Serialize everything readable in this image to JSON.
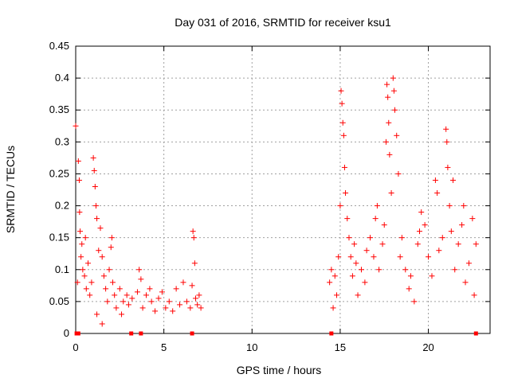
{
  "chart_data": {
    "type": "scatter",
    "title": "Day 031 of 2016, SRMTID for receiver ksu1",
    "xlabel": "GPS time / hours",
    "ylabel": "SRMTID / TECUs",
    "xlim": [
      0,
      23.5
    ],
    "ylim": [
      0,
      0.45
    ],
    "xticks": [
      0,
      5,
      10,
      15,
      20
    ],
    "xtick_labels": [
      "0",
      "5",
      "10",
      "15",
      "20"
    ],
    "yticks": [
      0,
      0.05,
      0.1,
      0.15,
      0.2,
      0.25,
      0.3,
      0.35,
      0.4,
      0.45
    ],
    "ytick_labels": [
      "0",
      "0.05",
      "0.1",
      "0.15",
      "0.2",
      "0.25",
      "0.3",
      "0.35",
      "0.4",
      "0.45"
    ],
    "grid": true,
    "marker": "plus",
    "series": [
      {
        "name": "SRMTID",
        "color": "#ff0000",
        "points": [
          [
            0.0,
            0.325
          ],
          [
            0.1,
            0.08
          ],
          [
            0.15,
            0.27
          ],
          [
            0.2,
            0.24
          ],
          [
            0.22,
            0.19
          ],
          [
            0.25,
            0.16
          ],
          [
            0.3,
            0.12
          ],
          [
            0.35,
            0.14
          ],
          [
            0.4,
            0.1
          ],
          [
            0.5,
            0.09
          ],
          [
            0.55,
            0.15
          ],
          [
            0.6,
            0.07
          ],
          [
            0.7,
            0.11
          ],
          [
            0.8,
            0.06
          ],
          [
            0.9,
            0.08
          ],
          [
            1.0,
            0.275
          ],
          [
            1.05,
            0.255
          ],
          [
            1.1,
            0.23
          ],
          [
            1.15,
            0.2
          ],
          [
            1.2,
            0.18
          ],
          [
            1.3,
            0.13
          ],
          [
            1.4,
            0.165
          ],
          [
            1.5,
            0.12
          ],
          [
            1.6,
            0.09
          ],
          [
            1.7,
            0.07
          ],
          [
            1.8,
            0.05
          ],
          [
            1.9,
            0.1
          ],
          [
            2.0,
            0.135
          ],
          [
            2.05,
            0.15
          ],
          [
            2.1,
            0.08
          ],
          [
            2.2,
            0.06
          ],
          [
            2.3,
            0.04
          ],
          [
            2.5,
            0.07
          ],
          [
            2.7,
            0.05
          ],
          [
            2.9,
            0.06
          ],
          [
            3.0,
            0.045
          ],
          [
            3.2,
            0.055
          ],
          [
            3.5,
            0.065
          ],
          [
            3.6,
            0.1
          ],
          [
            3.7,
            0.085
          ],
          [
            3.8,
            0.04
          ],
          [
            4.0,
            0.06
          ],
          [
            4.2,
            0.07
          ],
          [
            4.3,
            0.05
          ],
          [
            4.5,
            0.035
          ],
          [
            4.7,
            0.055
          ],
          [
            4.9,
            0.065
          ],
          [
            5.1,
            0.04
          ],
          [
            5.3,
            0.05
          ],
          [
            5.5,
            0.035
          ],
          [
            5.7,
            0.07
          ],
          [
            5.9,
            0.045
          ],
          [
            6.1,
            0.08
          ],
          [
            6.3,
            0.05
          ],
          [
            6.5,
            0.04
          ],
          [
            6.6,
            0.075
          ],
          [
            6.65,
            0.16
          ],
          [
            6.7,
            0.15
          ],
          [
            6.75,
            0.11
          ],
          [
            6.8,
            0.055
          ],
          [
            6.9,
            0.045
          ],
          [
            7.0,
            0.06
          ],
          [
            7.1,
            0.04
          ],
          [
            1.2,
            0.03
          ],
          [
            1.5,
            0.015
          ],
          [
            2.6,
            0.03
          ],
          [
            14.4,
            0.08
          ],
          [
            14.5,
            0.1
          ],
          [
            14.6,
            0.04
          ],
          [
            14.7,
            0.09
          ],
          [
            14.8,
            0.06
          ],
          [
            14.9,
            0.12
          ],
          [
            15.0,
            0.2
          ],
          [
            15.05,
            0.38
          ],
          [
            15.1,
            0.36
          ],
          [
            15.15,
            0.33
          ],
          [
            15.2,
            0.31
          ],
          [
            15.25,
            0.26
          ],
          [
            15.3,
            0.22
          ],
          [
            15.4,
            0.18
          ],
          [
            15.5,
            0.15
          ],
          [
            15.6,
            0.12
          ],
          [
            15.7,
            0.09
          ],
          [
            15.8,
            0.14
          ],
          [
            15.9,
            0.11
          ],
          [
            16.0,
            0.06
          ],
          [
            16.2,
            0.1
          ],
          [
            16.4,
            0.08
          ],
          [
            16.5,
            0.13
          ],
          [
            16.7,
            0.15
          ],
          [
            16.9,
            0.12
          ],
          [
            17.0,
            0.18
          ],
          [
            17.1,
            0.2
          ],
          [
            17.2,
            0.1
          ],
          [
            17.4,
            0.14
          ],
          [
            17.5,
            0.17
          ],
          [
            17.6,
            0.3
          ],
          [
            17.65,
            0.39
          ],
          [
            17.7,
            0.37
          ],
          [
            17.75,
            0.33
          ],
          [
            17.8,
            0.28
          ],
          [
            17.9,
            0.22
          ],
          [
            18.0,
            0.4
          ],
          [
            18.05,
            0.38
          ],
          [
            18.1,
            0.35
          ],
          [
            18.2,
            0.31
          ],
          [
            18.3,
            0.25
          ],
          [
            18.4,
            0.12
          ],
          [
            18.5,
            0.15
          ],
          [
            18.7,
            0.1
          ],
          [
            18.9,
            0.07
          ],
          [
            19.0,
            0.09
          ],
          [
            19.2,
            0.05
          ],
          [
            19.4,
            0.14
          ],
          [
            19.5,
            0.16
          ],
          [
            19.6,
            0.19
          ],
          [
            19.8,
            0.17
          ],
          [
            20.0,
            0.12
          ],
          [
            20.2,
            0.09
          ],
          [
            20.4,
            0.24
          ],
          [
            20.5,
            0.22
          ],
          [
            20.6,
            0.13
          ],
          [
            20.8,
            0.15
          ],
          [
            21.0,
            0.32
          ],
          [
            21.05,
            0.3
          ],
          [
            21.1,
            0.26
          ],
          [
            21.2,
            0.2
          ],
          [
            21.3,
            0.16
          ],
          [
            21.4,
            0.24
          ],
          [
            21.5,
            0.1
          ],
          [
            21.7,
            0.14
          ],
          [
            21.9,
            0.17
          ],
          [
            22.0,
            0.2
          ],
          [
            22.1,
            0.08
          ],
          [
            22.3,
            0.11
          ],
          [
            22.5,
            0.18
          ],
          [
            22.6,
            0.06
          ],
          [
            22.7,
            0.14
          ]
        ],
        "zero_markers": [
          0.05,
          0.15,
          3.15,
          3.7,
          6.6,
          14.5,
          22.7
        ]
      }
    ]
  }
}
